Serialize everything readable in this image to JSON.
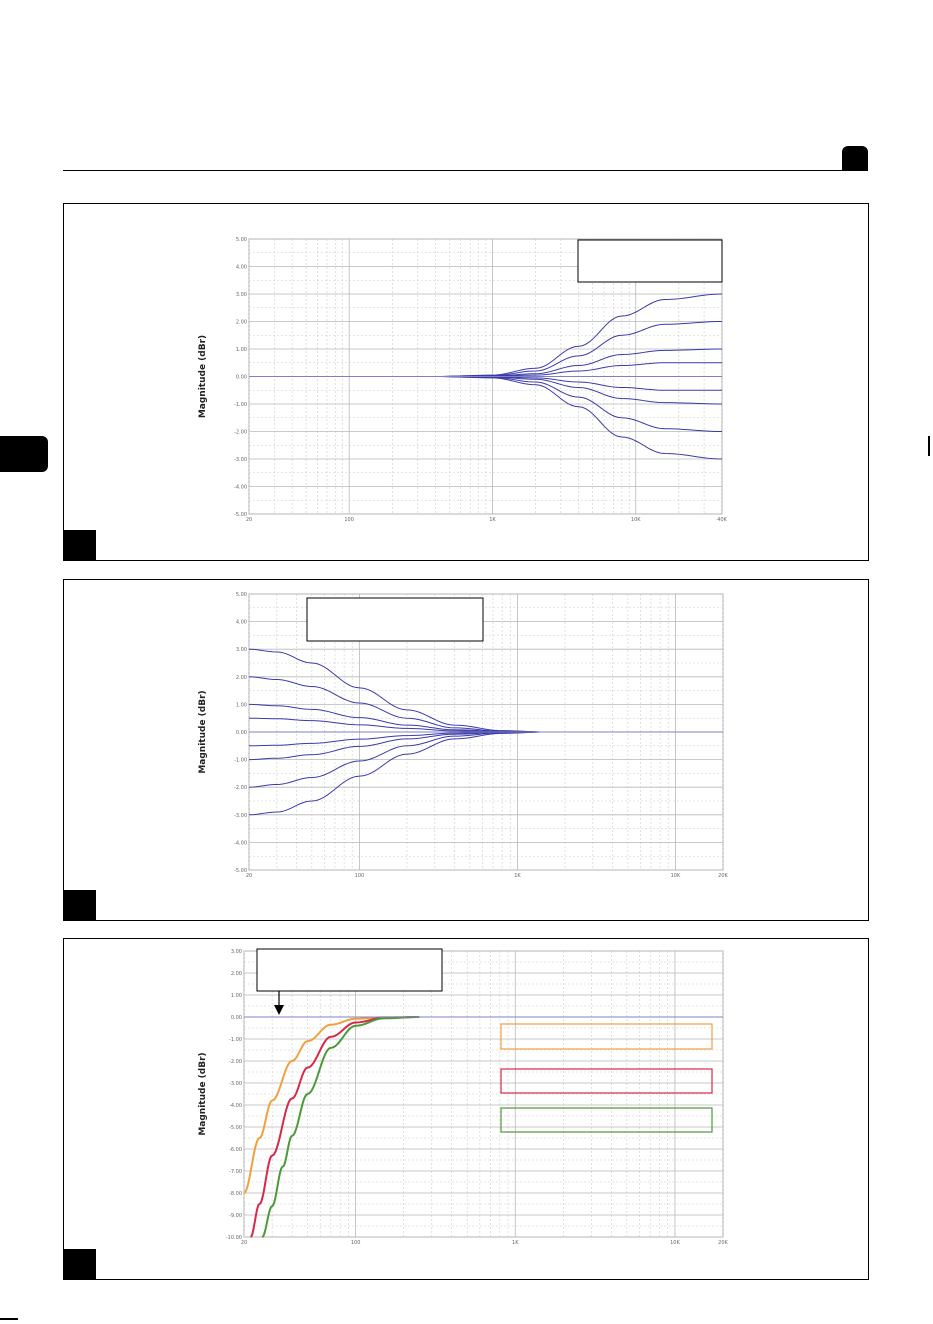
{
  "page": {
    "colors": {
      "accent": "#000000",
      "grid": "#cccccc",
      "curve": "#3a3aa8"
    }
  },
  "chart_data": [
    {
      "type": "line",
      "title": "",
      "xlabel": "",
      "ylabel": "Magnitude (dBr)",
      "xscale": "log",
      "xlim": [
        20,
        40000
      ],
      "ylim": [
        -5,
        5
      ],
      "x_ticks": [
        20,
        100,
        1000,
        10000,
        40000
      ],
      "x_tick_labels": [
        "20",
        "100",
        "1K",
        "10K",
        "40K"
      ],
      "y_ticks": [
        5,
        4,
        3,
        2,
        1,
        0,
        -1,
        -2,
        -3,
        -4,
        -5
      ],
      "y_tick_labels": [
        "5.00",
        "4.00",
        "3.00",
        "2.00",
        "1.00",
        "0.00",
        "-1.00",
        "-2.00",
        "-3.00",
        "-4.00",
        "-5.00"
      ],
      "grid": true,
      "shape": "high-shelf",
      "series": [
        {
          "x": [
            20,
            400,
            1000,
            2000,
            4000,
            8000,
            16000,
            40000
          ],
          "y": [
            0,
            0,
            0.05,
            0.3,
            1.1,
            2.2,
            2.8,
            3.0
          ]
        },
        {
          "x": [
            20,
            400,
            1000,
            2000,
            4000,
            8000,
            16000,
            40000
          ],
          "y": [
            0,
            0,
            0.03,
            0.2,
            0.75,
            1.5,
            1.9,
            2.0
          ]
        },
        {
          "x": [
            20,
            400,
            1000,
            2000,
            4000,
            8000,
            16000,
            40000
          ],
          "y": [
            0,
            0,
            0.02,
            0.1,
            0.4,
            0.8,
            0.95,
            1.0
          ]
        },
        {
          "x": [
            20,
            400,
            1000,
            2000,
            4000,
            8000,
            16000,
            40000
          ],
          "y": [
            0,
            0,
            0.01,
            0.05,
            0.2,
            0.4,
            0.5,
            0.5
          ]
        },
        {
          "x": [
            20,
            400,
            1000,
            2000,
            4000,
            8000,
            16000,
            40000
          ],
          "y": [
            0,
            0,
            0,
            0,
            0,
            0,
            0,
            0
          ]
        },
        {
          "x": [
            20,
            400,
            1000,
            2000,
            4000,
            8000,
            16000,
            40000
          ],
          "y": [
            0,
            0,
            -0.01,
            -0.05,
            -0.2,
            -0.4,
            -0.5,
            -0.5
          ]
        },
        {
          "x": [
            20,
            400,
            1000,
            2000,
            4000,
            8000,
            16000,
            40000
          ],
          "y": [
            0,
            0,
            -0.02,
            -0.1,
            -0.4,
            -0.8,
            -0.95,
            -1.0
          ]
        },
        {
          "x": [
            20,
            400,
            1000,
            2000,
            4000,
            8000,
            16000,
            40000
          ],
          "y": [
            0,
            0,
            -0.03,
            -0.2,
            -0.75,
            -1.5,
            -1.9,
            -2.0
          ]
        },
        {
          "x": [
            20,
            400,
            1000,
            2000,
            4000,
            8000,
            16000,
            40000
          ],
          "y": [
            0,
            0,
            -0.05,
            -0.3,
            -1.1,
            -2.2,
            -2.8,
            -3.0
          ]
        }
      ]
    },
    {
      "type": "line",
      "title": "",
      "xlabel": "",
      "ylabel": "Magnitude (dBr)",
      "xscale": "log",
      "xlim": [
        20,
        20000
      ],
      "ylim": [
        -5,
        5
      ],
      "x_ticks": [
        20,
        100,
        1000,
        10000,
        20000
      ],
      "x_tick_labels": [
        "20",
        "100",
        "1K",
        "10K",
        "20K"
      ],
      "y_ticks": [
        5,
        4,
        3,
        2,
        1,
        0,
        -1,
        -2,
        -3,
        -4,
        -5
      ],
      "y_tick_labels": [
        "5.00",
        "4.00",
        "3.00",
        "2.00",
        "1.00",
        "0.00",
        "-1.00",
        "-2.00",
        "-3.00",
        "-4.00",
        "-5.00"
      ],
      "grid": true,
      "shape": "low-shelf",
      "series": [
        {
          "x": [
            20,
            30,
            50,
            100,
            200,
            400,
            800,
            1500,
            20000
          ],
          "y": [
            3.0,
            2.9,
            2.5,
            1.6,
            0.8,
            0.25,
            0.05,
            0,
            0
          ]
        },
        {
          "x": [
            20,
            30,
            50,
            100,
            200,
            400,
            800,
            1500,
            20000
          ],
          "y": [
            2.0,
            1.9,
            1.65,
            1.05,
            0.5,
            0.15,
            0.03,
            0,
            0
          ]
        },
        {
          "x": [
            20,
            30,
            50,
            100,
            200,
            400,
            800,
            1500,
            20000
          ],
          "y": [
            1.0,
            0.95,
            0.82,
            0.52,
            0.25,
            0.08,
            0.02,
            0,
            0
          ]
        },
        {
          "x": [
            20,
            30,
            50,
            100,
            200,
            400,
            800,
            1500,
            20000
          ],
          "y": [
            0.5,
            0.48,
            0.41,
            0.26,
            0.13,
            0.04,
            0.01,
            0,
            0
          ]
        },
        {
          "x": [
            20,
            30,
            50,
            100,
            200,
            400,
            800,
            1500,
            20000
          ],
          "y": [
            0,
            0,
            0,
            0,
            0,
            0,
            0,
            0,
            0
          ]
        },
        {
          "x": [
            20,
            30,
            50,
            100,
            200,
            400,
            800,
            1500,
            20000
          ],
          "y": [
            -0.5,
            -0.48,
            -0.41,
            -0.26,
            -0.13,
            -0.04,
            -0.01,
            0,
            0
          ]
        },
        {
          "x": [
            20,
            30,
            50,
            100,
            200,
            400,
            800,
            1500,
            20000
          ],
          "y": [
            -1.0,
            -0.95,
            -0.82,
            -0.52,
            -0.25,
            -0.08,
            -0.02,
            0,
            0
          ]
        },
        {
          "x": [
            20,
            30,
            50,
            100,
            200,
            400,
            800,
            1500,
            20000
          ],
          "y": [
            -2.0,
            -1.9,
            -1.65,
            -1.05,
            -0.5,
            -0.15,
            -0.03,
            0,
            0
          ]
        },
        {
          "x": [
            20,
            30,
            50,
            100,
            200,
            400,
            800,
            1500,
            20000
          ],
          "y": [
            -3.0,
            -2.9,
            -2.5,
            -1.6,
            -0.8,
            -0.25,
            -0.05,
            0,
            0
          ]
        }
      ]
    },
    {
      "type": "line",
      "title": "",
      "xlabel": "",
      "ylabel": "Magnitude (dBr)",
      "xscale": "log",
      "xlim": [
        20,
        20000
      ],
      "ylim": [
        -10,
        3
      ],
      "x_ticks": [
        20,
        100,
        1000,
        10000,
        20000
      ],
      "x_tick_labels": [
        "20",
        "100",
        "1K",
        "10K",
        "20K"
      ],
      "y_ticks": [
        3,
        2,
        1,
        0,
        -1,
        -2,
        -3,
        -4,
        -5,
        -6,
        -7,
        -8,
        -9,
        -10
      ],
      "y_tick_labels": [
        "3.00",
        "2.00",
        "1.00",
        "0.00",
        "-1.00",
        "-2.00",
        "-3.00",
        "-4.00",
        "-5.00",
        "-6.00",
        "-7.00",
        "-8.00",
        "-9.00",
        "-10.00"
      ],
      "grid": true,
      "shape": "high-pass",
      "series": [
        {
          "color": "#f0a040",
          "x": [
            20,
            25,
            30,
            40,
            50,
            70,
            100,
            150,
            250
          ],
          "y": [
            -8.0,
            -5.5,
            -3.8,
            -2.0,
            -1.1,
            -0.35,
            -0.08,
            -0.01,
            0
          ]
        },
        {
          "color": "#d8284a",
          "x": [
            22,
            25,
            30,
            40,
            50,
            70,
            100,
            150,
            250
          ],
          "y": [
            -10.0,
            -8.5,
            -6.3,
            -3.7,
            -2.3,
            -0.9,
            -0.25,
            -0.04,
            0
          ]
        },
        {
          "color": "#4a9a3a",
          "x": [
            26,
            30,
            35,
            40,
            50,
            70,
            100,
            150,
            250
          ],
          "y": [
            -10.0,
            -8.6,
            -6.8,
            -5.4,
            -3.5,
            -1.4,
            -0.4,
            -0.06,
            0
          ]
        }
      ]
    }
  ]
}
